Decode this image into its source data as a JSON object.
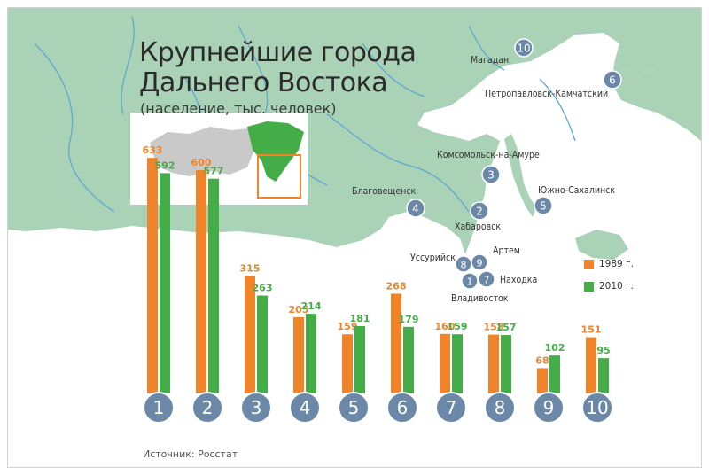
{
  "title_line1": "Крупнейшие города",
  "title_line2": "Дальнего Востока",
  "subtitle": "(население, тыс. человек)",
  "source": "Источник: Росстат",
  "colors": {
    "series_1989": "#f0842a",
    "series_2010": "#45ad48",
    "land": "#a9d2b6",
    "sea": "#ffffff",
    "river": "#5fa8d3",
    "marker": "#6b88a9",
    "inset_box": "#f0842a",
    "inset_gray": "#c9c9c9"
  },
  "legend": [
    {
      "label": "1989 г.",
      "color": "#f0842a"
    },
    {
      "label": "2010 г.",
      "color": "#45ad48"
    }
  ],
  "cities": [
    {
      "num": "1",
      "name": "Владивосток"
    },
    {
      "num": "2",
      "name": "Хабаровск"
    },
    {
      "num": "3",
      "name": "Комсомольск-на-Амуре"
    },
    {
      "num": "4",
      "name": "Благовещенск"
    },
    {
      "num": "5",
      "name": "Южно-Сахалинск"
    },
    {
      "num": "6",
      "name": "Петропавловск-Камчатский"
    },
    {
      "num": "7",
      "name": "Находка"
    },
    {
      "num": "8",
      "name": "Уссурийск"
    },
    {
      "num": "9",
      "name": "Артем"
    },
    {
      "num": "10",
      "name": "Магадан"
    }
  ],
  "chart_data": {
    "type": "bar",
    "title": "Крупнейшие города Дальнего Востока",
    "subtitle": "(население, тыс. человек)",
    "categories": [
      "1",
      "2",
      "3",
      "4",
      "5",
      "6",
      "7",
      "8",
      "9",
      "10"
    ],
    "series": [
      {
        "name": "1989 г.",
        "values": [
          633,
          600,
          315,
          205,
          159,
          268,
          160,
          158,
          68,
          151
        ]
      },
      {
        "name": "2010 г.",
        "values": [
          592,
          577,
          263,
          214,
          181,
          179,
          159,
          157,
          102,
          95
        ]
      }
    ],
    "data_labels": true,
    "legend_position": "right"
  }
}
